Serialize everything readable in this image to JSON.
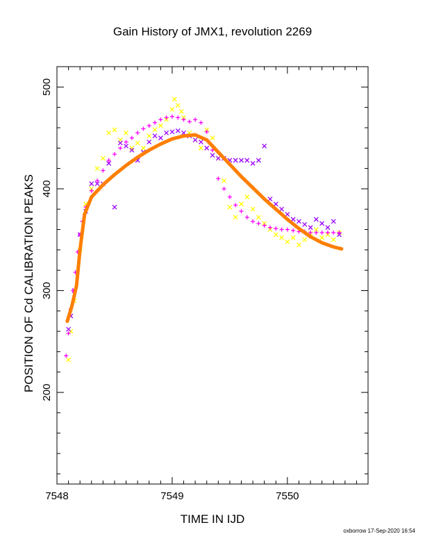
{
  "header": {
    "title": "Gain History of JMX1, revolution 2269"
  },
  "footer": {
    "credit": "oxborrow 17-Sep-2020 16:54"
  },
  "chart_data": {
    "type": "scatter",
    "title": "Gain History of JMX1, revolution 2269",
    "xlabel": "TIME IN IJD",
    "ylabel": "POSITION OF Cd CALIBRATION PEAKS",
    "xlim": [
      7548.0,
      7550.7
    ],
    "ylim": [
      110,
      520
    ],
    "xticks": [
      7548,
      7549,
      7550
    ],
    "yticks": [
      200,
      300,
      400,
      500
    ],
    "grid": false,
    "series": [
      {
        "marker": "x",
        "color": "#ffff00",
        "points": [
          [
            7548.1,
            232
          ],
          [
            7548.12,
            260
          ],
          [
            7548.15,
            290
          ],
          [
            7548.2,
            340
          ],
          [
            7548.25,
            385
          ],
          [
            7548.3,
            400
          ],
          [
            7548.35,
            420
          ],
          [
            7548.4,
            430
          ],
          [
            7548.45,
            455
          ],
          [
            7548.5,
            458
          ],
          [
            7548.55,
            448
          ],
          [
            7548.6,
            455
          ],
          [
            7548.65,
            440
          ],
          [
            7548.7,
            445
          ],
          [
            7548.75,
            440
          ],
          [
            7548.8,
            452
          ],
          [
            7548.85,
            458
          ],
          [
            7548.9,
            462
          ],
          [
            7548.95,
            468
          ],
          [
            7549.0,
            478
          ],
          [
            7549.02,
            488
          ],
          [
            7549.05,
            482
          ],
          [
            7549.08,
            476
          ],
          [
            7549.1,
            470
          ],
          [
            7549.15,
            455
          ],
          [
            7549.2,
            448
          ],
          [
            7549.25,
            440
          ],
          [
            7549.3,
            458
          ],
          [
            7549.35,
            450
          ],
          [
            7549.4,
            430
          ],
          [
            7549.45,
            408
          ],
          [
            7549.5,
            382
          ],
          [
            7549.55,
            372
          ],
          [
            7549.6,
            385
          ],
          [
            7549.65,
            392
          ],
          [
            7549.7,
            380
          ],
          [
            7549.75,
            372
          ],
          [
            7549.8,
            366
          ],
          [
            7549.85,
            360
          ],
          [
            7549.9,
            355
          ],
          [
            7549.95,
            352
          ],
          [
            7550.0,
            348
          ],
          [
            7550.05,
            352
          ],
          [
            7550.1,
            345
          ],
          [
            7550.15,
            350
          ],
          [
            7550.2,
            356
          ],
          [
            7550.25,
            360
          ],
          [
            7550.3,
            352
          ],
          [
            7550.35,
            355
          ],
          [
            7550.4,
            350
          ],
          [
            7550.45,
            357
          ]
        ]
      },
      {
        "marker": "x",
        "color": "#9900ff",
        "points": [
          [
            7548.1,
            262
          ],
          [
            7548.12,
            275
          ],
          [
            7548.15,
            300
          ],
          [
            7548.2,
            355
          ],
          [
            7548.25,
            378
          ],
          [
            7548.3,
            405
          ],
          [
            7548.35,
            405
          ],
          [
            7548.4,
            405
          ],
          [
            7548.45,
            425
          ],
          [
            7548.5,
            382
          ],
          [
            7548.55,
            445
          ],
          [
            7548.6,
            442
          ],
          [
            7548.65,
            438
          ],
          [
            7548.7,
            428
          ],
          [
            7548.75,
            436
          ],
          [
            7548.8,
            446
          ],
          [
            7548.85,
            452
          ],
          [
            7548.9,
            450
          ],
          [
            7548.95,
            455
          ],
          [
            7549.0,
            456
          ],
          [
            7549.05,
            457
          ],
          [
            7549.1,
            455
          ],
          [
            7549.15,
            452
          ],
          [
            7549.2,
            448
          ],
          [
            7549.25,
            446
          ],
          [
            7549.3,
            440
          ],
          [
            7549.35,
            433
          ],
          [
            7549.4,
            430
          ],
          [
            7549.45,
            430
          ],
          [
            7549.5,
            428
          ],
          [
            7549.55,
            428
          ],
          [
            7549.6,
            428
          ],
          [
            7549.65,
            428
          ],
          [
            7549.7,
            425
          ],
          [
            7549.75,
            428
          ],
          [
            7549.8,
            442
          ],
          [
            7549.85,
            390
          ],
          [
            7549.9,
            385
          ],
          [
            7549.95,
            380
          ],
          [
            7550.0,
            375
          ],
          [
            7550.05,
            370
          ],
          [
            7550.1,
            368
          ],
          [
            7550.15,
            365
          ],
          [
            7550.2,
            362
          ],
          [
            7550.25,
            370
          ],
          [
            7550.3,
            366
          ],
          [
            7550.35,
            362
          ],
          [
            7550.4,
            368
          ],
          [
            7550.45,
            355
          ]
        ]
      },
      {
        "marker": "+",
        "color": "#ff00ff",
        "points": [
          [
            7548.08,
            236
          ],
          [
            7548.1,
            258
          ],
          [
            7548.12,
            282
          ],
          [
            7548.14,
            300
          ],
          [
            7548.16,
            318
          ],
          [
            7548.18,
            338
          ],
          [
            7548.2,
            355
          ],
          [
            7548.22,
            368
          ],
          [
            7548.25,
            382
          ],
          [
            7548.3,
            398
          ],
          [
            7548.35,
            408
          ],
          [
            7548.4,
            418
          ],
          [
            7548.45,
            428
          ],
          [
            7548.5,
            434
          ],
          [
            7548.55,
            440
          ],
          [
            7548.6,
            446
          ],
          [
            7548.65,
            450
          ],
          [
            7548.7,
            455
          ],
          [
            7548.75,
            459
          ],
          [
            7548.8,
            462
          ],
          [
            7548.85,
            465
          ],
          [
            7548.9,
            468
          ],
          [
            7548.95,
            470
          ],
          [
            7549.0,
            471
          ],
          [
            7549.05,
            470
          ],
          [
            7549.1,
            468
          ],
          [
            7549.15,
            466
          ],
          [
            7549.2,
            468
          ],
          [
            7549.25,
            465
          ],
          [
            7549.3,
            456
          ],
          [
            7549.35,
            438
          ],
          [
            7549.4,
            410
          ],
          [
            7549.45,
            400
          ],
          [
            7549.5,
            392
          ],
          [
            7549.55,
            384
          ],
          [
            7549.6,
            378
          ],
          [
            7549.65,
            372
          ],
          [
            7549.7,
            368
          ],
          [
            7549.75,
            366
          ],
          [
            7549.8,
            364
          ],
          [
            7549.85,
            362
          ],
          [
            7549.9,
            361
          ],
          [
            7549.95,
            360
          ],
          [
            7550.0,
            360
          ],
          [
            7550.05,
            359
          ],
          [
            7550.1,
            358
          ],
          [
            7550.15,
            358
          ],
          [
            7550.2,
            357
          ],
          [
            7550.25,
            357
          ],
          [
            7550.3,
            357
          ],
          [
            7550.35,
            357
          ],
          [
            7550.4,
            357
          ],
          [
            7550.45,
            357
          ]
        ]
      },
      {
        "marker": "line",
        "color": "#ff7f00",
        "points": [
          [
            7548.09,
            270
          ],
          [
            7548.13,
            285
          ],
          [
            7548.17,
            305
          ],
          [
            7548.2,
            340
          ],
          [
            7548.24,
            375
          ],
          [
            7548.3,
            392
          ],
          [
            7548.4,
            404
          ],
          [
            7548.5,
            414
          ],
          [
            7548.6,
            423
          ],
          [
            7548.7,
            431
          ],
          [
            7548.8,
            438
          ],
          [
            7548.9,
            444
          ],
          [
            7549.0,
            449
          ],
          [
            7549.1,
            452
          ],
          [
            7549.2,
            453
          ],
          [
            7549.3,
            448
          ],
          [
            7549.4,
            436
          ],
          [
            7549.5,
            424
          ],
          [
            7549.6,
            412
          ],
          [
            7549.7,
            401
          ],
          [
            7549.8,
            390
          ],
          [
            7549.9,
            380
          ],
          [
            7550.0,
            370
          ],
          [
            7550.1,
            361
          ],
          [
            7550.2,
            353
          ],
          [
            7550.3,
            347
          ],
          [
            7550.4,
            343
          ],
          [
            7550.47,
            341
          ]
        ]
      }
    ]
  }
}
